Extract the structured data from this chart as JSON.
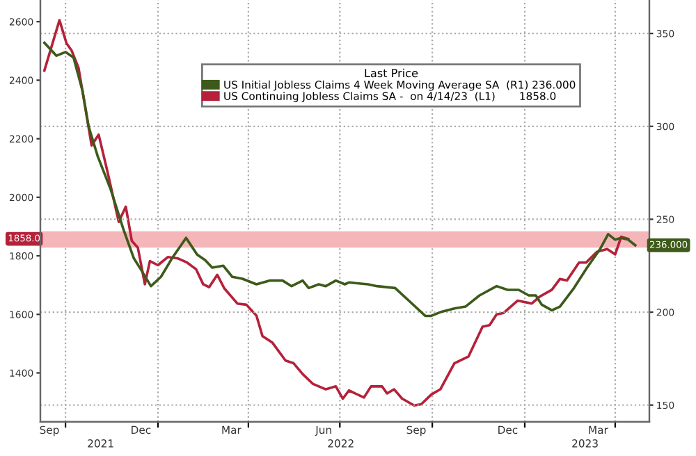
{
  "chart_data": {
    "type": "line",
    "legend_title": "Last Price",
    "series": [
      {
        "name": "US Initial Jobless Claims 4 Week Moving Average SA  (R1) 236.000",
        "color": "#3d5a1a",
        "axis": "y2",
        "x": [
          "2021-09-10",
          "2021-09-22",
          "2021-10-01",
          "2021-10-09",
          "2021-10-18",
          "2021-10-24",
          "2021-11-02",
          "2021-11-15",
          "2021-11-28",
          "2021-12-08",
          "2021-12-15",
          "2021-12-25",
          "2022-01-04",
          "2022-01-15",
          "2022-01-29",
          "2022-02-09",
          "2022-02-17",
          "2022-02-24",
          "2022-03-07",
          "2022-03-16",
          "2022-03-26",
          "2022-04-09",
          "2022-04-22",
          "2022-05-05",
          "2022-05-14",
          "2022-05-25",
          "2022-05-31",
          "2022-06-10",
          "2022-06-17",
          "2022-06-27",
          "2022-07-06",
          "2022-07-10",
          "2022-07-29",
          "2022-08-07",
          "2022-08-25",
          "2022-09-08",
          "2022-09-24",
          "2022-09-30",
          "2022-10-09",
          "2022-10-23",
          "2022-11-03",
          "2022-11-17",
          "2022-12-04",
          "2022-12-15",
          "2022-12-26",
          "2023-01-05",
          "2023-01-12",
          "2023-01-18",
          "2023-01-28",
          "2023-02-05",
          "2023-02-19",
          "2023-03-04",
          "2023-03-17",
          "2023-03-25",
          "2023-04-01",
          "2023-04-07",
          "2023-04-14",
          "2023-04-21"
        ],
        "values": [
          345,
          338,
          340,
          337,
          319,
          300,
          284,
          266,
          244,
          229,
          223,
          214,
          219,
          229,
          240,
          231,
          228,
          224,
          225,
          219,
          218,
          215,
          217,
          217,
          214,
          217,
          213,
          215,
          214,
          217,
          215,
          216,
          215,
          214,
          213,
          206,
          198,
          198,
          200,
          202,
          203,
          209,
          214,
          212,
          212,
          209,
          209,
          204,
          201,
          203,
          213,
          224,
          234,
          242,
          239,
          240,
          239,
          236
        ]
      },
      {
        "name": "US Continuing Jobless Claims SA -  on 4/14/23  (L1)       1858.0",
        "color": "#b5213a",
        "axis": "y",
        "x": [
          "2021-09-10",
          "2021-09-25",
          "2021-10-02",
          "2021-10-07",
          "2021-10-14",
          "2021-10-27",
          "2021-11-03",
          "2021-11-12",
          "2021-11-23",
          "2021-11-30",
          "2021-12-06",
          "2021-12-12",
          "2021-12-19",
          "2021-12-24",
          "2022-01-01",
          "2022-01-11",
          "2022-01-21",
          "2022-01-30",
          "2022-02-08",
          "2022-02-15",
          "2022-02-21",
          "2022-03-01",
          "2022-03-08",
          "2022-03-21",
          "2022-03-30",
          "2022-04-09",
          "2022-04-15",
          "2022-04-25",
          "2022-05-08",
          "2022-05-16",
          "2022-05-25",
          "2022-06-04",
          "2022-06-17",
          "2022-06-27",
          "2022-07-04",
          "2022-07-10",
          "2022-07-25",
          "2022-08-01",
          "2022-08-12",
          "2022-08-17",
          "2022-08-24",
          "2022-09-01",
          "2022-09-13",
          "2022-09-20",
          "2022-09-30",
          "2022-10-09",
          "2022-10-23",
          "2022-11-06",
          "2022-11-20",
          "2022-11-27",
          "2022-12-04",
          "2022-12-11",
          "2022-12-25",
          "2023-01-08",
          "2023-01-16",
          "2023-01-28",
          "2023-02-05",
          "2023-02-12",
          "2023-02-24",
          "2023-03-03",
          "2023-03-14",
          "2023-03-24",
          "2023-04-01",
          "2023-04-07",
          "2023-04-14"
        ],
        "values": [
          2433,
          2605,
          2526,
          2502,
          2442,
          2177,
          2214,
          2084,
          1916,
          1968,
          1851,
          1828,
          1703,
          1782,
          1768,
          1796,
          1791,
          1777,
          1754,
          1703,
          1693,
          1735,
          1689,
          1637,
          1633,
          1596,
          1526,
          1503,
          1442,
          1433,
          1396,
          1363,
          1344,
          1354,
          1312,
          1340,
          1316,
          1354,
          1354,
          1330,
          1344,
          1312,
          1289,
          1293,
          1326,
          1344,
          1433,
          1456,
          1558,
          1563,
          1600,
          1605,
          1647,
          1637,
          1661,
          1684,
          1721,
          1716,
          1777,
          1777,
          1814,
          1823,
          1805,
          1865,
          1858
        ]
      }
    ],
    "xlim": [
      "2021-09-06",
      "2023-05-05"
    ],
    "xticks": [
      {
        "value": "2021-09-15",
        "label": "Sep"
      },
      {
        "value": "2021-10-01",
        "label": null
      },
      {
        "value": "2021-12-15",
        "label": "Dec"
      },
      {
        "value": "2022-01-01",
        "label": null
      },
      {
        "value": "2022-03-15",
        "label": "Mar"
      },
      {
        "value": "2022-04-01",
        "label": null
      },
      {
        "value": "2022-06-15",
        "label": "Jun"
      },
      {
        "value": "2022-07-01",
        "label": null
      },
      {
        "value": "2022-09-15",
        "label": "Sep"
      },
      {
        "value": "2022-10-01",
        "label": null
      },
      {
        "value": "2022-12-15",
        "label": "Dec"
      },
      {
        "value": "2023-01-01",
        "label": null
      },
      {
        "value": "2023-03-15",
        "label": "Mar"
      },
      {
        "value": "2023-04-01",
        "label": null
      }
    ],
    "x2lim": [
      "2021-09-06",
      "2023-05-05"
    ],
    "x2ticks": [
      {
        "value": "2021-11-05",
        "label": "2021"
      },
      {
        "value": "2022-07-02",
        "label": "2022"
      },
      {
        "value": "2023-03-02",
        "label": "2023"
      }
    ],
    "ylim": [
      1233,
      2674
    ],
    "yticks": [
      1400,
      1600,
      1800,
      2000,
      2200,
      2400,
      2600,
      {
        "value": 1858,
        "label": "1858.0"
      }
    ],
    "y2lim": [
      141,
      368
    ],
    "y2ticks": [
      150,
      200,
      250,
      300,
      350,
      {
        "value": 236,
        "label": "236.000"
      }
    ],
    "bands": [
      {
        "axis": "y",
        "from": 1828,
        "to": 1884,
        "color": "#f4b6b8"
      }
    ],
    "grid": true,
    "legend": "top right",
    "marker": "none",
    "line_style": "solid"
  }
}
